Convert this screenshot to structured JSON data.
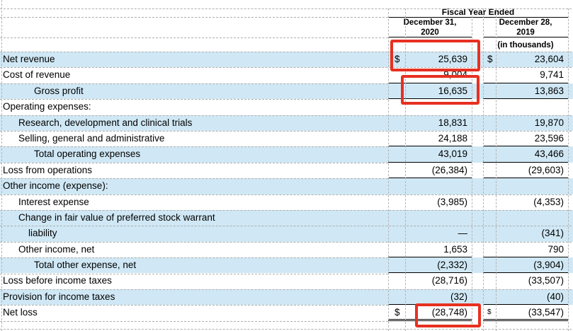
{
  "header": {
    "title": "Fiscal Year Ended",
    "col_2020_line1": "December 31,",
    "col_2020_line2": "2020",
    "col_2019_line1": "December 28,",
    "col_2019_line2": "2019",
    "units_note": "(in thousands)"
  },
  "table": {
    "columns": [
      "Fiscal Year Ended December 31, 2020",
      "Fiscal Year Ended December 28, 2019"
    ],
    "rows": [
      {
        "label": "Net revenue",
        "indent": 0,
        "shaded": true,
        "dollar": true,
        "v2020": "25,639",
        "v2019": "23,604",
        "underline": "none"
      },
      {
        "label": "Cost of revenue",
        "indent": 0,
        "shaded": false,
        "dollar": false,
        "v2020": "9,004",
        "v2019": "9,741",
        "underline": "single"
      },
      {
        "label": "Gross profit",
        "indent": 2,
        "shaded": true,
        "dollar": false,
        "v2020": "16,635",
        "v2019": "13,863",
        "underline": "single"
      },
      {
        "label": "Operating expenses:",
        "indent": 0,
        "shaded": false,
        "dollar": false,
        "v2020": "",
        "v2019": "",
        "underline": "none"
      },
      {
        "label": "Research, development and clinical trials",
        "indent": 1,
        "shaded": true,
        "dollar": false,
        "v2020": "18,831",
        "v2019": "19,870",
        "underline": "none"
      },
      {
        "label": "Selling, general and administrative",
        "indent": 1,
        "shaded": false,
        "dollar": false,
        "v2020": "24,188",
        "v2019": "23,596",
        "underline": "single"
      },
      {
        "label": "Total operating expenses",
        "indent": 2,
        "shaded": true,
        "dollar": false,
        "v2020": "43,019",
        "v2019": "43,466",
        "underline": "single"
      },
      {
        "label": "Loss from operations",
        "indent": 0,
        "shaded": false,
        "dollar": false,
        "v2020": "(26,384)",
        "v2019": "(29,603)",
        "underline": "single"
      },
      {
        "label": "Other income (expense):",
        "indent": 0,
        "shaded": true,
        "dollar": false,
        "v2020": "",
        "v2019": "",
        "underline": "none"
      },
      {
        "label": "Interest expense",
        "indent": 1,
        "shaded": false,
        "dollar": false,
        "v2020": "(3,985)",
        "v2019": "(4,353)",
        "underline": "none"
      },
      {
        "label": "Change in fair value of preferred stock warrant",
        "indent": 1,
        "shaded": true,
        "dollar": false,
        "v2020": "",
        "v2019": "",
        "underline": "none"
      },
      {
        "label": "liability",
        "indent": "1b",
        "shaded": true,
        "dollar": false,
        "v2020": "—",
        "v2019": "(341)",
        "underline": "none"
      },
      {
        "label": "Other income, net",
        "indent": 1,
        "shaded": false,
        "dollar": false,
        "v2020": "1,653",
        "v2019": "790",
        "underline": "single"
      },
      {
        "label": "Total other expense, net",
        "indent": 2,
        "shaded": true,
        "dollar": false,
        "v2020": "(2,332)",
        "v2019": "(3,904)",
        "underline": "single"
      },
      {
        "label": "Loss before income taxes",
        "indent": 0,
        "shaded": false,
        "dollar": false,
        "v2020": "(28,716)",
        "v2019": "(33,507)",
        "underline": "none"
      },
      {
        "label": "Provision for income taxes",
        "indent": 0,
        "shaded": true,
        "dollar": false,
        "v2020": "(32)",
        "v2019": "(40)",
        "underline": "single"
      },
      {
        "label": "Net loss",
        "indent": 0,
        "shaded": false,
        "dollar": true,
        "small_dollar_2019": true,
        "v2020": "(28,748)",
        "v2019": "(33,547)",
        "underline": "double"
      }
    ]
  },
  "annotations": {
    "highlight_color": "#e73021",
    "highlighted_values": [
      {
        "target": "net-revenue-2020",
        "value": "25,639"
      },
      {
        "target": "gross-profit-2020",
        "value": "16,635"
      },
      {
        "target": "net-loss-2020",
        "value": "(28,748)"
      }
    ]
  }
}
